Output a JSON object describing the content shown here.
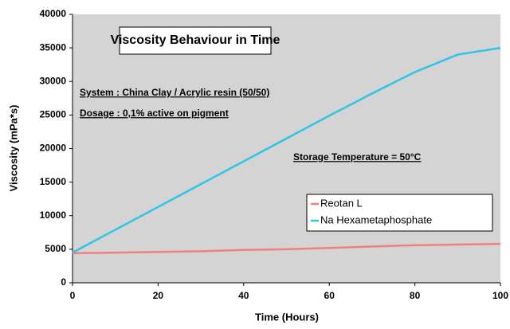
{
  "chart_data": {
    "type": "line",
    "title": "Viscosity Behaviour in Time",
    "annotations": [
      "System : China Clay / Acrylic resin (50/50)",
      "Dosage : 0,1% active on pigment",
      "Storage Temperature = 50°C"
    ],
    "x_label": "Time (Hours)",
    "y_label": "Viscosity (mPa*s)",
    "x": [
      0,
      10,
      20,
      30,
      40,
      50,
      60,
      70,
      80,
      90,
      100
    ],
    "series": [
      {
        "name": "Reotan L",
        "color": "#f08080",
        "values": [
          4400,
          4500,
          4600,
          4700,
          4900,
          5000,
          5200,
          5400,
          5600,
          5700,
          5800
        ]
      },
      {
        "name": "Na Hexametaphosphate",
        "color": "#2ec4e8",
        "values": [
          4500,
          7900,
          11300,
          14700,
          18100,
          21500,
          24900,
          28200,
          31400,
          34000,
          35000
        ]
      }
    ],
    "xlim": [
      0,
      100
    ],
    "xticks": [
      0,
      20,
      40,
      60,
      80,
      100
    ],
    "ylim": [
      0,
      40000
    ],
    "yticks": [
      0,
      5000,
      10000,
      15000,
      20000,
      25000,
      30000,
      35000,
      40000
    ],
    "grid": false,
    "legend_position": "right"
  }
}
